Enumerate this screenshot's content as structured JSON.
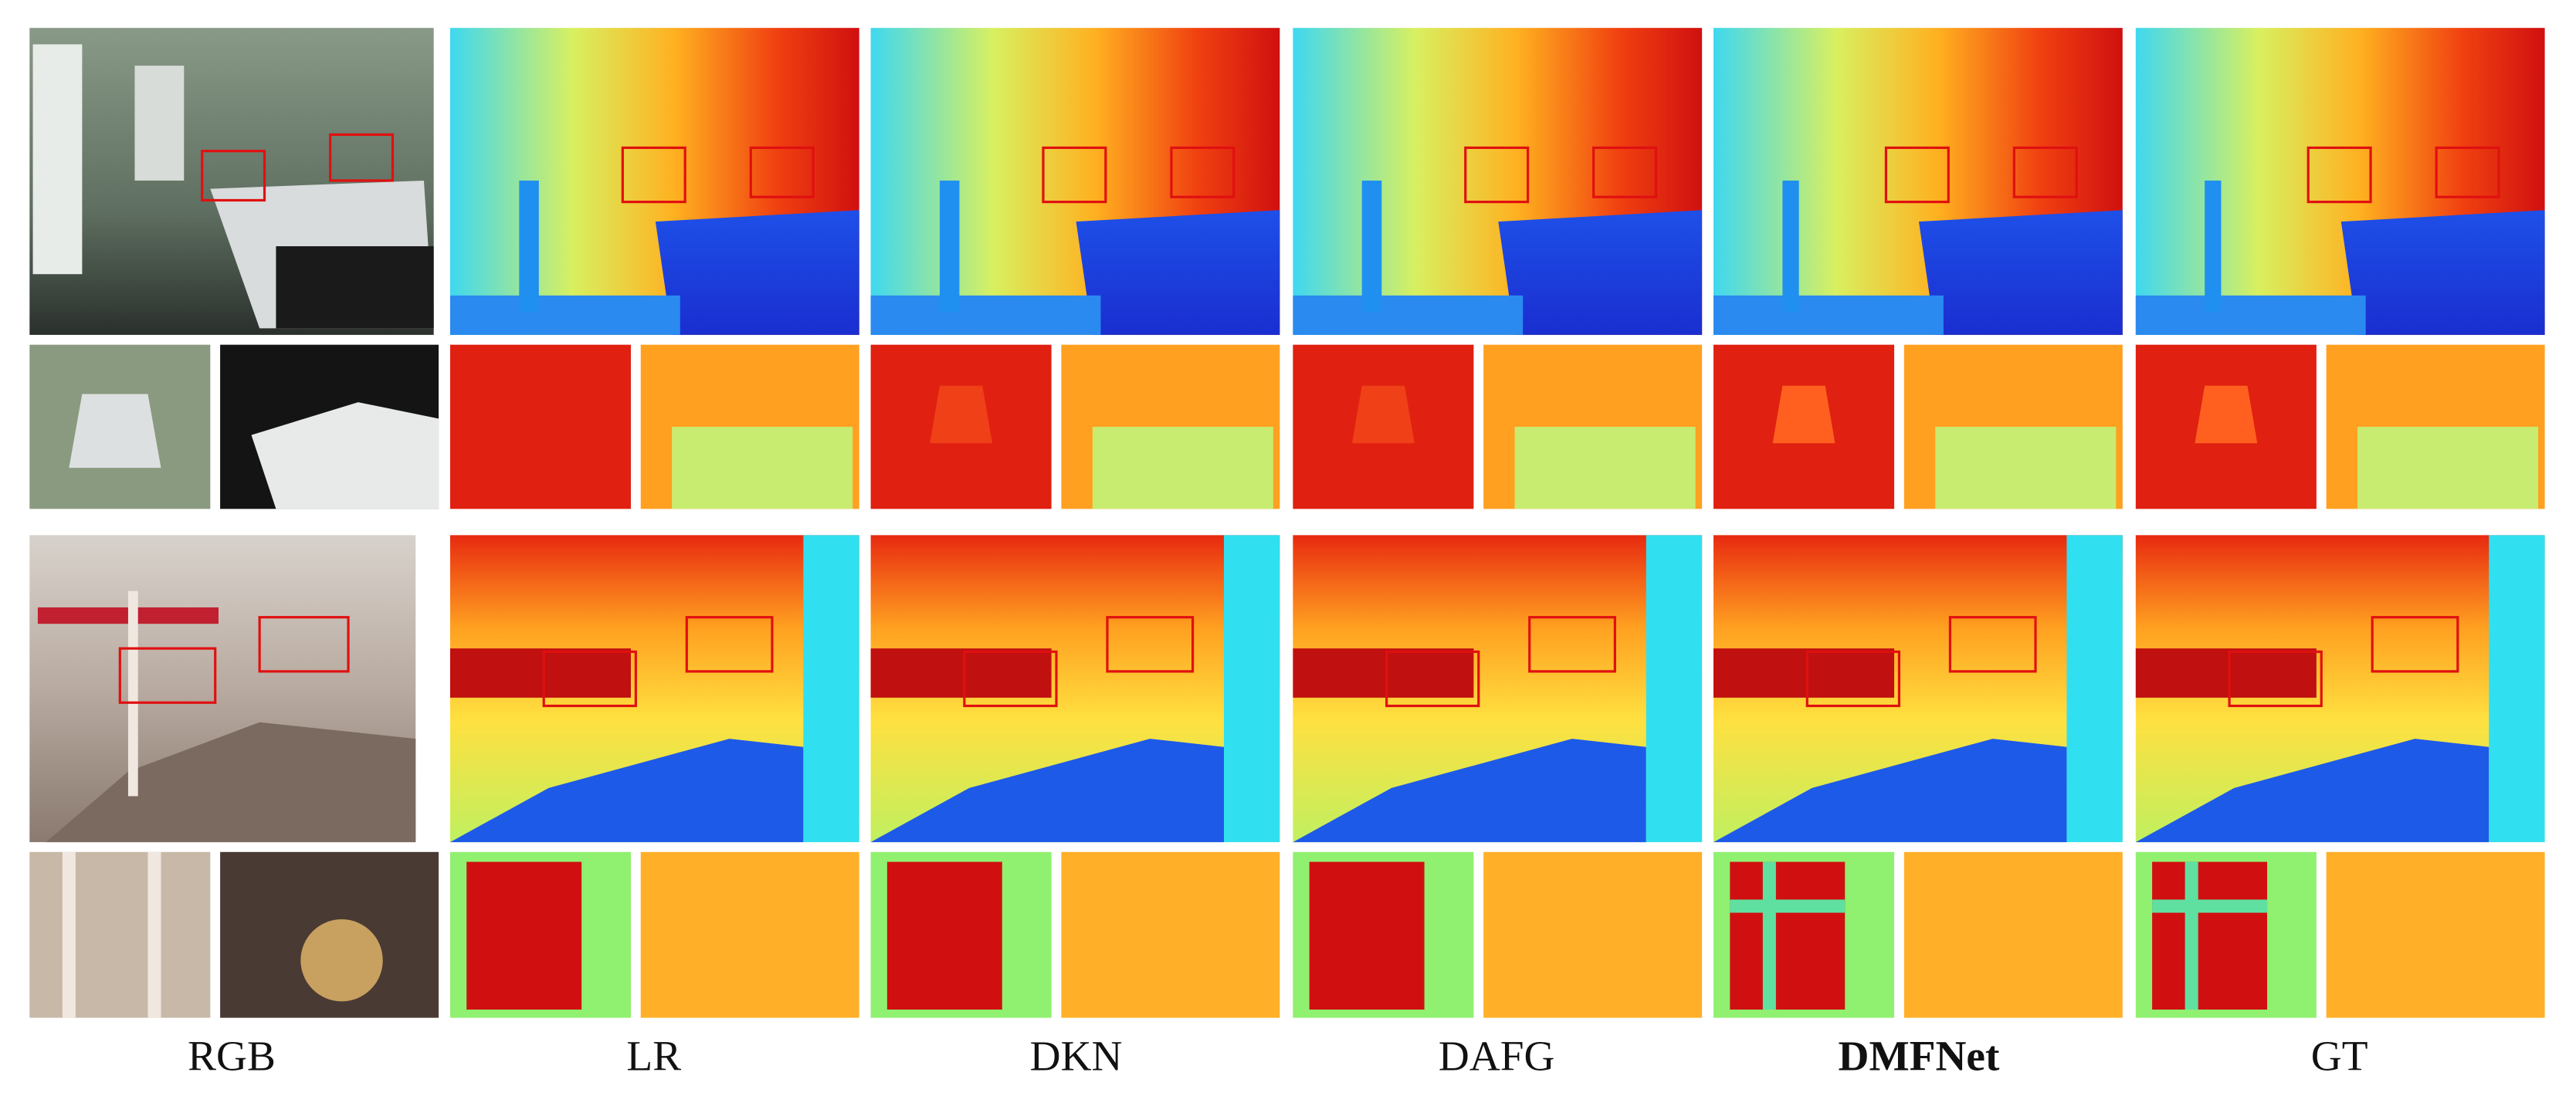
{
  "columns": [
    "RGB",
    "LR",
    "DKN",
    "DAFG",
    "DMFNet",
    "GT"
  ]
}
